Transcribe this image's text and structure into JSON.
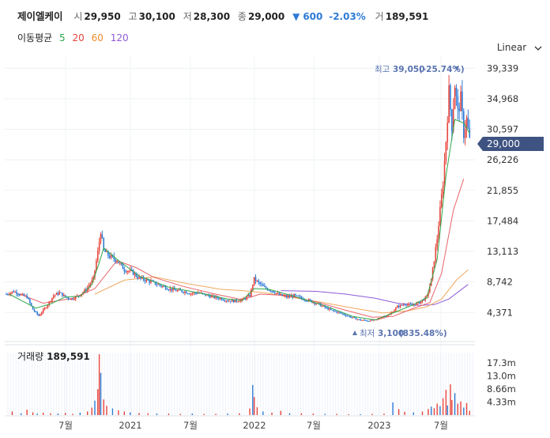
{
  "header": {
    "stock_name": "제이엘케이",
    "open_label": "시",
    "open": "29,950",
    "high_label": "고",
    "high": "30,100",
    "low_label": "저",
    "low": "28,300",
    "close_label": "종",
    "close": "29,000",
    "change_arrow": "▼",
    "change": "600",
    "change_pct": "-2.03%",
    "volume_label": "거",
    "volume": "189,591"
  },
  "ma_legend": {
    "label": "이동평균",
    "items": [
      {
        "text": "5",
        "color": "#2ea84a"
      },
      {
        "text": "20",
        "color": "#e8453c"
      },
      {
        "text": "60",
        "color": "#f08c2a"
      },
      {
        "text": "120",
        "color": "#8e5ad6"
      }
    ]
  },
  "scale_mode": "Linear",
  "volume_panel": {
    "label": "거래량",
    "value": "189,591"
  },
  "colors": {
    "up": "#e8453c",
    "down": "#2f7bd6",
    "badge": "#3e5381",
    "annotation": "#5a74b0"
  },
  "chart_data": {
    "type": "candlestick",
    "price_axis": {
      "ticks": [
        "39,339",
        "34,968",
        "30,597",
        "26,226",
        "21,855",
        "17,484",
        "13,113",
        "8,742",
        "4,371"
      ],
      "range": [
        1800,
        40500
      ]
    },
    "current_price": "29,000",
    "high_annotation": {
      "label": "최고",
      "value": "39,050",
      "pct": "(-25.74%)"
    },
    "low_annotation": {
      "label": "최저",
      "value": "3,100",
      "pct": "(835.48%)"
    },
    "x_ticks": [
      "7월",
      "2021",
      "7월",
      "2022",
      "7월",
      "2023",
      "7월"
    ],
    "volume_axis": {
      "ticks": [
        "17.3m",
        "13.0m",
        "8.66m",
        "4.33m"
      ],
      "max": 21000000
    },
    "price_path": [
      [
        0,
        7000
      ],
      [
        5,
        7400
      ],
      [
        10,
        6900
      ],
      [
        14,
        6600
      ],
      [
        18,
        4800
      ],
      [
        22,
        3900
      ],
      [
        27,
        5200
      ],
      [
        32,
        6800
      ],
      [
        36,
        7200
      ],
      [
        40,
        6600
      ],
      [
        44,
        6300
      ],
      [
        49,
        6800
      ],
      [
        54,
        7600
      ],
      [
        59,
        9200
      ],
      [
        62,
        13000
      ],
      [
        64,
        16000
      ],
      [
        66,
        13200
      ],
      [
        70,
        12400
      ],
      [
        75,
        11800
      ],
      [
        80,
        10500
      ],
      [
        85,
        10200
      ],
      [
        90,
        9300
      ],
      [
        95,
        9000
      ],
      [
        100,
        8600
      ],
      [
        105,
        8200
      ],
      [
        110,
        7800
      ],
      [
        115,
        7500
      ],
      [
        120,
        7400
      ],
      [
        125,
        7100
      ],
      [
        130,
        7200
      ],
      [
        135,
        6900
      ],
      [
        140,
        6600
      ],
      [
        145,
        6400
      ],
      [
        150,
        6100
      ],
      [
        155,
        6000
      ],
      [
        160,
        6200
      ],
      [
        165,
        6800
      ],
      [
        168,
        9200
      ],
      [
        171,
        8600
      ],
      [
        175,
        7900
      ],
      [
        180,
        7500
      ],
      [
        185,
        6900
      ],
      [
        190,
        6600
      ],
      [
        195,
        6800
      ],
      [
        200,
        6400
      ],
      [
        205,
        6100
      ],
      [
        210,
        5700
      ],
      [
        215,
        5200
      ],
      [
        220,
        4700
      ],
      [
        225,
        4400
      ],
      [
        230,
        4000
      ],
      [
        235,
        3600
      ],
      [
        240,
        3300
      ],
      [
        245,
        3200
      ],
      [
        250,
        3300
      ],
      [
        255,
        3700
      ],
      [
        260,
        4100
      ],
      [
        265,
        5200
      ],
      [
        270,
        5600
      ],
      [
        275,
        5400
      ],
      [
        280,
        5800
      ],
      [
        285,
        6600
      ],
      [
        288,
        9000
      ],
      [
        290,
        12000
      ],
      [
        292,
        15000
      ],
      [
        294,
        19000
      ],
      [
        296,
        23000
      ],
      [
        298,
        29000
      ],
      [
        300,
        36000
      ],
      [
        302,
        31000
      ],
      [
        304,
        37000
      ],
      [
        306,
        33000
      ],
      [
        308,
        35000
      ],
      [
        310,
        30000
      ],
      [
        312,
        32000
      ],
      [
        314,
        29000
      ]
    ],
    "ma_5_path": [
      [
        2,
        7000
      ],
      [
        20,
        5000
      ],
      [
        30,
        5600
      ],
      [
        40,
        6600
      ],
      [
        50,
        6700
      ],
      [
        58,
        8400
      ],
      [
        63,
        11500
      ],
      [
        66,
        13600
      ],
      [
        75,
        12000
      ],
      [
        90,
        9600
      ],
      [
        110,
        8000
      ],
      [
        130,
        7200
      ],
      [
        150,
        6300
      ],
      [
        160,
        6100
      ],
      [
        168,
        7800
      ],
      [
        178,
        7700
      ],
      [
        195,
        6700
      ],
      [
        215,
        5400
      ],
      [
        235,
        3800
      ],
      [
        250,
        3300
      ],
      [
        262,
        4300
      ],
      [
        275,
        5400
      ],
      [
        285,
        6500
      ],
      [
        292,
        12000
      ],
      [
        298,
        24000
      ],
      [
        304,
        32000
      ],
      [
        310,
        31500
      ],
      [
        314,
        30000
      ]
    ],
    "ma_20_path": [
      [
        8,
        7100
      ],
      [
        25,
        5700
      ],
      [
        45,
        6400
      ],
      [
        60,
        7800
      ],
      [
        75,
        11800
      ],
      [
        88,
        10800
      ],
      [
        100,
        9400
      ],
      [
        120,
        8100
      ],
      [
        140,
        7100
      ],
      [
        160,
        6200
      ],
      [
        172,
        7000
      ],
      [
        190,
        6800
      ],
      [
        210,
        5900
      ],
      [
        230,
        4700
      ],
      [
        248,
        3700
      ],
      [
        262,
        3800
      ],
      [
        275,
        4900
      ],
      [
        287,
        5800
      ],
      [
        295,
        10000
      ],
      [
        303,
        19000
      ],
      [
        310,
        23500
      ]
    ],
    "ma_60_path": [
      [
        60,
        7000
      ],
      [
        80,
        9000
      ],
      [
        100,
        9500
      ],
      [
        120,
        8600
      ],
      [
        145,
        7700
      ],
      [
        160,
        7500
      ],
      [
        175,
        7200
      ],
      [
        195,
        6500
      ],
      [
        215,
        5800
      ],
      [
        235,
        5000
      ],
      [
        255,
        4300
      ],
      [
        272,
        4600
      ],
      [
        285,
        5200
      ],
      [
        295,
        6300
      ],
      [
        305,
        9000
      ],
      [
        313,
        10500
      ]
    ],
    "ma_120_path": [
      [
        186,
        7500
      ],
      [
        210,
        7400
      ],
      [
        230,
        7000
      ],
      [
        250,
        6400
      ],
      [
        265,
        5700
      ],
      [
        280,
        5400
      ],
      [
        290,
        5500
      ],
      [
        300,
        6300
      ],
      [
        313,
        8400
      ]
    ],
    "volume_bars": [
      [
        4,
        1.2
      ],
      [
        10,
        0.6
      ],
      [
        14,
        1.8
      ],
      [
        18,
        0.9
      ],
      [
        21,
        0.5
      ],
      [
        25,
        0.8
      ],
      [
        30,
        0.6
      ],
      [
        35,
        0.5
      ],
      [
        40,
        0.7
      ],
      [
        45,
        0.4
      ],
      [
        50,
        0.8
      ],
      [
        55,
        1.2
      ],
      [
        58,
        2.5
      ],
      [
        60,
        4.8
      ],
      [
        62,
        8.6
      ],
      [
        63,
        20.2
      ],
      [
        64,
        14.0
      ],
      [
        66,
        5.2
      ],
      [
        68,
        3.1
      ],
      [
        72,
        2.2
      ],
      [
        76,
        1.6
      ],
      [
        80,
        1.2
      ],
      [
        84,
        0.9
      ],
      [
        90,
        0.7
      ],
      [
        96,
        0.6
      ],
      [
        102,
        0.5
      ],
      [
        110,
        0.5
      ],
      [
        118,
        0.4
      ],
      [
        126,
        0.5
      ],
      [
        134,
        0.4
      ],
      [
        142,
        0.4
      ],
      [
        150,
        0.5
      ],
      [
        158,
        0.6
      ],
      [
        165,
        2.2
      ],
      [
        167,
        10.0
      ],
      [
        168,
        6.0
      ],
      [
        170,
        2.6
      ],
      [
        174,
        1.2
      ],
      [
        180,
        0.8
      ],
      [
        186,
        1.4
      ],
      [
        192,
        0.6
      ],
      [
        200,
        0.6
      ],
      [
        208,
        0.5
      ],
      [
        216,
        0.4
      ],
      [
        224,
        0.4
      ],
      [
        232,
        0.3
      ],
      [
        240,
        0.3
      ],
      [
        248,
        0.4
      ],
      [
        256,
        0.5
      ],
      [
        262,
        4.2
      ],
      [
        266,
        2.0
      ],
      [
        270,
        1.1
      ],
      [
        276,
        0.9
      ],
      [
        282,
        1.2
      ],
      [
        286,
        2.0
      ],
      [
        288,
        2.8
      ],
      [
        290,
        2.3
      ],
      [
        292,
        3.8
      ],
      [
        294,
        3.0
      ],
      [
        296,
        5.6
      ],
      [
        298,
        8.4
      ],
      [
        299,
        3.2
      ],
      [
        301,
        10.2
      ],
      [
        302,
        5.0
      ],
      [
        304,
        7.3
      ],
      [
        306,
        3.8
      ],
      [
        308,
        4.5
      ],
      [
        310,
        2.5
      ],
      [
        312,
        4.0
      ],
      [
        314,
        1.4
      ]
    ]
  }
}
